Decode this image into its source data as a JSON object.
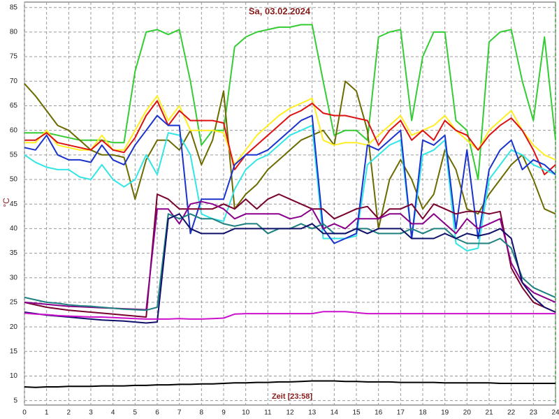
{
  "chart_data": {
    "type": "line",
    "title": "Sa, 03.02.2024",
    "y_label": "°C",
    "x_label": "Zeit [23:58]",
    "x": [
      0,
      0.5,
      1,
      1.5,
      2,
      2.5,
      3,
      3.5,
      4,
      4.5,
      5,
      5.5,
      6,
      6.5,
      7,
      7.5,
      8,
      8.5,
      9,
      9.5,
      10,
      10.5,
      11,
      11.5,
      12,
      12.5,
      13,
      13.5,
      14,
      14.5,
      15,
      15.5,
      16,
      16.5,
      17,
      17.5,
      18,
      18.5,
      19,
      19.5,
      20,
      20.5,
      21,
      21.5,
      22,
      22.5,
      23,
      23.5,
      24
    ],
    "xlim": [
      0,
      24
    ],
    "xticks": [
      0,
      1,
      2,
      3,
      4,
      5,
      6,
      7,
      8,
      9,
      10,
      11,
      12,
      13,
      14,
      15,
      16,
      17,
      18,
      19,
      20,
      21,
      22,
      23,
      24
    ],
    "ylim": [
      4.1,
      86.1
    ],
    "yticks": [
      5,
      10,
      15,
      20,
      25,
      30,
      35,
      40,
      45,
      50,
      55,
      60,
      65,
      70,
      75,
      80,
      85
    ],
    "grid": true,
    "series": [
      {
        "color": "#33cc33",
        "values": [
          59.5,
          59.5,
          59.5,
          59,
          58.5,
          58,
          58,
          58,
          57.5,
          57.5,
          72,
          80,
          80.5,
          79.5,
          80.5,
          70,
          57,
          60,
          60,
          77,
          79,
          80,
          80.5,
          81,
          81,
          81.5,
          81.5,
          70,
          59,
          60,
          60,
          58,
          79,
          80,
          80.5,
          62,
          75,
          80,
          80,
          62,
          60,
          50,
          78,
          80,
          80.5,
          70,
          62,
          79,
          58
        ]
      },
      {
        "color": "#6b6b00",
        "values": [
          69.5,
          67,
          64,
          61,
          60,
          58,
          56,
          55,
          55,
          54.5,
          46,
          54,
          58,
          58,
          56,
          60,
          53,
          58,
          68,
          44,
          47,
          49,
          52,
          54,
          56,
          58,
          59,
          60,
          57,
          70,
          68,
          60,
          40,
          50,
          54,
          50,
          44,
          47,
          56,
          52,
          44,
          43,
          47,
          50,
          53,
          55,
          50,
          44,
          43
        ]
      },
      {
        "color": "#ffee22",
        "values": [
          57.5,
          57.5,
          60,
          57,
          56.5,
          56,
          56,
          59,
          56,
          56,
          60,
          64,
          67,
          62,
          65,
          60,
          60,
          60,
          59.5,
          53,
          56,
          59,
          61,
          63,
          64.5,
          65.5,
          66.5,
          58,
          57,
          57.5,
          57.5,
          57,
          59,
          61,
          63,
          59,
          60,
          61,
          63,
          60,
          58,
          56,
          60,
          62,
          64,
          60,
          57,
          55,
          54
        ]
      },
      {
        "color": "#dd1111",
        "values": [
          58,
          58,
          59.5,
          57.5,
          57,
          56.5,
          56,
          58,
          56,
          55.5,
          58.5,
          63,
          66,
          61,
          64,
          62,
          62,
          62,
          61.5,
          52,
          55,
          57,
          59,
          61,
          63,
          64,
          65.5,
          63.5,
          63,
          63,
          62.5,
          62,
          57,
          60,
          62,
          58,
          60,
          58,
          62,
          60,
          59,
          56,
          59,
          61,
          62.5,
          60,
          56,
          51,
          53
        ]
      },
      {
        "color": "#33e6e6",
        "values": [
          55,
          53.5,
          52.5,
          52,
          52,
          50.5,
          50,
          53,
          50,
          48.5,
          50,
          55,
          51,
          59.5,
          59,
          55,
          43,
          42,
          41.5,
          48,
          52,
          54,
          55,
          57,
          59,
          60,
          61,
          38,
          38,
          38,
          38.5,
          53,
          55,
          57,
          58,
          38,
          55,
          56,
          58,
          37,
          35.5,
          36,
          50,
          53,
          56,
          55,
          53,
          52,
          51
        ]
      },
      {
        "color": "#1a33cc",
        "values": [
          56.5,
          56,
          59,
          55,
          54,
          54,
          53.5,
          57,
          54,
          53,
          57,
          60,
          63,
          61,
          61,
          39,
          46,
          46,
          46,
          53,
          55,
          55,
          56,
          58,
          60,
          62,
          63,
          40,
          37,
          38,
          39,
          57,
          56,
          58,
          60,
          38,
          58,
          57,
          59,
          40,
          56,
          38,
          52,
          56,
          58,
          52,
          54,
          53,
          51
        ]
      },
      {
        "color": "#7a0030",
        "values": [
          25,
          24.5,
          24,
          23.7,
          23.4,
          23.2,
          23,
          22.8,
          22.6,
          22.4,
          22.2,
          22,
          47,
          46,
          44,
          44,
          44,
          44,
          45,
          44,
          46,
          44,
          46,
          47,
          46,
          45,
          44,
          44,
          42,
          43,
          44,
          44.5,
          42,
          44,
          44,
          45,
          42,
          45,
          44,
          43,
          43.5,
          43.5,
          43,
          43.5,
          32,
          28,
          25,
          24,
          23
        ]
      },
      {
        "color": "#8a008a",
        "values": [
          25,
          24.8,
          24.6,
          24.4,
          24.2,
          24.1,
          24,
          23.9,
          23.8,
          23.7,
          23.6,
          23.5,
          44,
          44,
          41,
          45,
          45.5,
          45,
          44,
          42,
          43,
          43,
          43,
          43,
          42,
          42.5,
          44,
          40,
          41,
          40,
          42,
          42,
          42,
          43,
          43,
          41,
          41,
          43,
          41,
          39,
          42,
          40,
          41,
          42,
          33,
          29,
          27,
          26,
          25
        ]
      },
      {
        "color": "#1f8080",
        "values": [
          26,
          25.5,
          25,
          24.8,
          24.5,
          24.3,
          24.2,
          24,
          23.8,
          23.6,
          23.5,
          23.4,
          24,
          43,
          42,
          43,
          42,
          42,
          41,
          40.5,
          41,
          41,
          39,
          40,
          40,
          41,
          40,
          41,
          39,
          39,
          40,
          40,
          39,
          39,
          39,
          40,
          39,
          40,
          40,
          38,
          37,
          37,
          37,
          38,
          36,
          30,
          28,
          27,
          26
        ]
      },
      {
        "color": "#10106a",
        "values": [
          23,
          22.7,
          22.4,
          22.2,
          22,
          21.8,
          21.6,
          21.4,
          21.3,
          21.2,
          21,
          20.8,
          21,
          42,
          43,
          40,
          39,
          39,
          39,
          40,
          40,
          40,
          40,
          40,
          40,
          40,
          41,
          39,
          39,
          39,
          40,
          39,
          40,
          40,
          40,
          38,
          38,
          38,
          39,
          38,
          39,
          38.5,
          39,
          40,
          38,
          29,
          26,
          24,
          23
        ]
      },
      {
        "color": "#cc11cc",
        "values": [
          22.8,
          22.6,
          22.5,
          22.3,
          22.2,
          22.1,
          22,
          22,
          21.9,
          21.8,
          21.7,
          21.6,
          21.6,
          21.6,
          21.7,
          21.6,
          21.6,
          21.7,
          21.8,
          22.6,
          22.7,
          22.7,
          22.7,
          22.7,
          22.7,
          22.7,
          22.7,
          23.1,
          23.1,
          23.1,
          22.9,
          22.7,
          22.7,
          22.7,
          22.7,
          22.7,
          22.7,
          22.7,
          22.7,
          22.7,
          22.7,
          22.7,
          22.7,
          22.7,
          22.7,
          22.7,
          22.7,
          22.7,
          22.7
        ]
      },
      {
        "color": "#000000",
        "values": [
          7.8,
          7.7,
          7.8,
          7.8,
          7.9,
          7.9,
          7.9,
          8,
          8,
          8,
          8.1,
          8.1,
          8.2,
          8.2,
          8.3,
          8.3,
          8.4,
          8.4,
          8.5,
          8.6,
          8.6,
          8.7,
          8.7,
          8.8,
          8.8,
          8.9,
          9,
          9,
          9,
          8.9,
          8.9,
          8.8,
          8.8,
          8.8,
          8.7,
          8.7,
          8.7,
          8.7,
          8.6,
          8.6,
          8.6,
          8.6,
          8.6,
          8.5,
          8.5,
          8.5,
          8.5,
          8.5,
          8.5
        ]
      }
    ]
  }
}
